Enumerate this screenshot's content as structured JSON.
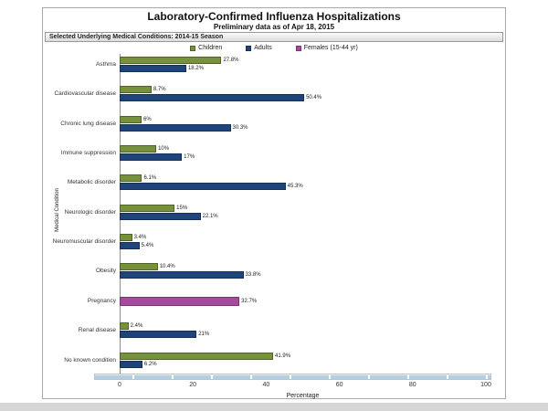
{
  "title": "Laboratory-Confirmed Influenza Hospitalizations",
  "subtitle": "Preliminary data as of Apr 18, 2015",
  "panel_header": "Selected Underlying Medical Conditions: 2014-15 Season",
  "chart_data": {
    "type": "bar",
    "orientation": "horizontal",
    "title": "Laboratory-Confirmed Influenza Hospitalizations",
    "subtitle": "Preliminary data as of Apr 18, 2015",
    "xlabel": "Percentage",
    "ylabel": "Medical Condition",
    "xlim": [
      0,
      100
    ],
    "xticks": [
      0,
      20,
      40,
      60,
      80,
      100
    ],
    "grid": false,
    "legend_position": "top",
    "legend": [
      {
        "name": "Children",
        "color": "#76923C",
        "border": "#4f6228"
      },
      {
        "name": "Adults",
        "color": "#1F4479",
        "border": "#152f56"
      },
      {
        "name": "Females (15-44 yr)",
        "color": "#A54A9C",
        "border": "#7c3375"
      }
    ],
    "categories": [
      "Asthma",
      "Cardiovascular disease",
      "Chronic lung disease",
      "Immune suppression",
      "Metabolic disorder",
      "Neurologic disorder",
      "Neuromuscular disorder",
      "Obesity",
      "Pregnancy",
      "Renal disease",
      "No known condition"
    ],
    "rows": [
      {
        "category": "Asthma",
        "bars": [
          {
            "series": "Children",
            "value": 27.8,
            "label": "27.8%"
          },
          {
            "series": "Adults",
            "value": 18.2,
            "label": "18.2%"
          }
        ]
      },
      {
        "category": "Cardiovascular disease",
        "bars": [
          {
            "series": "Children",
            "value": 8.7,
            "label": "8.7%"
          },
          {
            "series": "Adults",
            "value": 50.4,
            "label": "50.4%"
          }
        ]
      },
      {
        "category": "Chronic lung disease",
        "bars": [
          {
            "series": "Children",
            "value": 6,
            "label": "6%"
          },
          {
            "series": "Adults",
            "value": 30.3,
            "label": "30.3%"
          }
        ]
      },
      {
        "category": "Immune suppression",
        "bars": [
          {
            "series": "Children",
            "value": 10,
            "label": "10%"
          },
          {
            "series": "Adults",
            "value": 17,
            "label": "17%"
          }
        ]
      },
      {
        "category": "Metabolic disorder",
        "bars": [
          {
            "series": "Children",
            "value": 6.1,
            "label": "6.1%"
          },
          {
            "series": "Adults",
            "value": 45.3,
            "label": "45.3%"
          }
        ]
      },
      {
        "category": "Neurologic disorder",
        "bars": [
          {
            "series": "Children",
            "value": 15,
            "label": "15%"
          },
          {
            "series": "Adults",
            "value": 22.1,
            "label": "22.1%"
          }
        ]
      },
      {
        "category": "Neuromuscular disorder",
        "bars": [
          {
            "series": "Children",
            "value": 3.4,
            "label": "3.4%"
          },
          {
            "series": "Adults",
            "value": 5.4,
            "label": "5.4%"
          }
        ]
      },
      {
        "category": "Obesity",
        "bars": [
          {
            "series": "Children",
            "value": 10.4,
            "label": "10.4%"
          },
          {
            "series": "Adults",
            "value": 33.8,
            "label": "33.8%"
          }
        ]
      },
      {
        "category": "Pregnancy",
        "bars": [
          {
            "series": "Females (15-44 yr)",
            "value": 32.7,
            "label": "32.7%"
          }
        ]
      },
      {
        "category": "Renal disease",
        "bars": [
          {
            "series": "Children",
            "value": 2.4,
            "label": "2.4%"
          },
          {
            "series": "Adults",
            "value": 21,
            "label": "21%"
          }
        ]
      },
      {
        "category": "No known condition",
        "bars": [
          {
            "series": "Children",
            "value": 41.9,
            "label": "41.9%"
          },
          {
            "series": "Adults",
            "value": 6.2,
            "label": "6.2%"
          }
        ]
      }
    ]
  }
}
